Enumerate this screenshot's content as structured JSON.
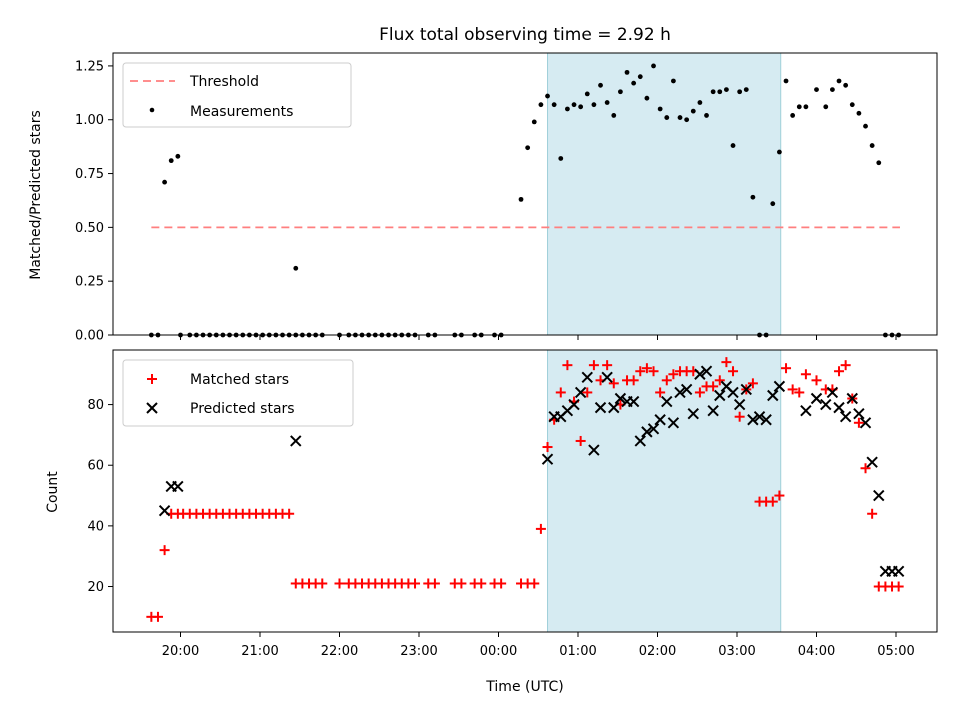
{
  "chart_data": [
    {
      "type": "scatter",
      "title": "Flux total observing time = 2.92 h",
      "ylabel": "Matched/Predicted stars",
      "xlabel": "",
      "ylim": [
        0.0,
        1.31
      ],
      "yticks": [
        0.0,
        0.25,
        0.5,
        0.75,
        1.0,
        1.25
      ],
      "ytick_labels": [
        "0.00",
        "0.25",
        "0.50",
        "0.75",
        "1.00",
        "1.25"
      ],
      "threshold": 0.5,
      "shaded_region": [
        "00:37",
        "03:33"
      ],
      "legend_position": "upper-left",
      "series": [
        {
          "name": "Threshold",
          "style": "dashed-line",
          "color": "#ff7f7f",
          "x": [
            "19:38",
            "05:03"
          ],
          "y": [
            0.5,
            0.5
          ]
        },
        {
          "name": "Measurements",
          "style": "dot",
          "color": "#000000",
          "x": [
            "19:38",
            "19:43",
            "19:48",
            "19:53",
            "19:58",
            "20:00",
            "20:07",
            "20:12",
            "20:17",
            "20:22",
            "20:27",
            "20:32",
            "20:37",
            "20:42",
            "20:47",
            "20:52",
            "20:57",
            "21:02",
            "21:07",
            "21:12",
            "21:17",
            "21:22",
            "21:27",
            "21:27",
            "21:32",
            "21:37",
            "21:42",
            "21:47",
            "22:00",
            "22:07",
            "22:12",
            "22:17",
            "22:22",
            "22:27",
            "22:32",
            "22:37",
            "22:42",
            "22:47",
            "22:52",
            "22:57",
            "23:07",
            "23:12",
            "23:27",
            "23:32",
            "23:42",
            "23:47",
            "23:57",
            "24:02",
            "24:17",
            "24:22",
            "24:27",
            "24:32",
            "24:37",
            "24:42",
            "24:47",
            "24:52",
            "24:57",
            "25:02",
            "25:07",
            "25:12",
            "25:17",
            "25:22",
            "25:27",
            "25:32",
            "25:37",
            "25:42",
            "25:47",
            "25:52",
            "25:57",
            "26:02",
            "26:07",
            "26:12",
            "26:17",
            "26:22",
            "26:27",
            "26:32",
            "26:37",
            "26:42",
            "26:47",
            "26:52",
            "26:57",
            "27:02",
            "27:07",
            "27:12",
            "27:17",
            "27:22",
            "27:27",
            "27:32",
            "27:37",
            "27:42",
            "27:47",
            "27:52",
            "28:00",
            "28:07",
            "28:12",
            "28:17",
            "28:22",
            "28:27",
            "28:32",
            "28:37",
            "28:42",
            "28:47",
            "28:52",
            "28:57",
            "29:02"
          ],
          "y": [
            0,
            0,
            0.71,
            0.81,
            0.83,
            0,
            0,
            0,
            0,
            0,
            0,
            0,
            0,
            0,
            0,
            0,
            0,
            0,
            0,
            0,
            0,
            0,
            0,
            0.31,
            0,
            0,
            0,
            0,
            0,
            0,
            0,
            0,
            0,
            0,
            0,
            0,
            0,
            0,
            0,
            0,
            0,
            0,
            0,
            0,
            0,
            0,
            0,
            0,
            0.63,
            0.87,
            0.99,
            1.07,
            1.11,
            1.07,
            0.82,
            1.05,
            1.07,
            1.06,
            1.12,
            1.07,
            1.16,
            1.08,
            1.02,
            1.13,
            1.22,
            1.17,
            1.2,
            1.1,
            1.25,
            1.05,
            1.01,
            1.18,
            1.01,
            1.0,
            1.04,
            1.08,
            1.02,
            1.13,
            1.13,
            1.14,
            0.88,
            1.13,
            1.14,
            0.64,
            0,
            0,
            0.61,
            0.85,
            1.18,
            1.02,
            1.06,
            1.06,
            1.14,
            1.06,
            1.14,
            1.18,
            1.16,
            1.07,
            1.03,
            0.97,
            0.88,
            0.8,
            0,
            0,
            0
          ]
        }
      ]
    },
    {
      "type": "scatter",
      "title": "",
      "xlabel": "Time (UTC)",
      "ylabel": "Count",
      "ylim": [
        5,
        98
      ],
      "yticks": [
        20,
        40,
        60,
        80
      ],
      "ytick_labels": [
        "20",
        "40",
        "60",
        "80"
      ],
      "xticks": [
        "20:00",
        "21:00",
        "22:00",
        "23:00",
        "00:00",
        "01:00",
        "02:00",
        "03:00",
        "04:00",
        "05:00"
      ],
      "shaded_region": [
        "00:37",
        "03:33"
      ],
      "legend_position": "upper-left",
      "series": [
        {
          "name": "Matched stars",
          "style": "plus",
          "color": "#ff0000",
          "x": [
            "19:38",
            "19:43",
            "19:48",
            "19:53",
            "19:58",
            "20:02",
            "20:07",
            "20:12",
            "20:17",
            "20:22",
            "20:27",
            "20:32",
            "20:37",
            "20:42",
            "20:47",
            "20:52",
            "20:57",
            "21:02",
            "21:07",
            "21:12",
            "21:17",
            "21:22",
            "21:27",
            "21:32",
            "21:37",
            "21:42",
            "21:47",
            "22:00",
            "22:07",
            "22:12",
            "22:17",
            "22:22",
            "22:27",
            "22:32",
            "22:37",
            "22:42",
            "22:47",
            "22:52",
            "22:57",
            "23:07",
            "23:12",
            "23:27",
            "23:32",
            "23:42",
            "23:47",
            "23:57",
            "24:02",
            "24:17",
            "24:22",
            "24:27",
            "24:32",
            "24:37",
            "24:42",
            "24:47",
            "24:52",
            "24:57",
            "25:02",
            "25:07",
            "25:12",
            "25:17",
            "25:22",
            "25:27",
            "25:32",
            "25:37",
            "25:42",
            "25:47",
            "25:52",
            "25:57",
            "26:02",
            "26:07",
            "26:12",
            "26:17",
            "26:22",
            "26:27",
            "26:32",
            "26:37",
            "26:42",
            "26:47",
            "26:52",
            "26:57",
            "27:02",
            "27:07",
            "27:12",
            "27:17",
            "27:22",
            "27:27",
            "27:32",
            "27:37",
            "27:42",
            "27:47",
            "27:52",
            "28:00",
            "28:07",
            "28:12",
            "28:17",
            "28:22",
            "28:27",
            "28:32",
            "28:37",
            "28:42",
            "28:47",
            "28:52",
            "28:57",
            "29:02"
          ],
          "y": [
            10,
            10,
            32,
            44,
            44,
            44,
            44,
            44,
            44,
            44,
            44,
            44,
            44,
            44,
            44,
            44,
            44,
            44,
            44,
            44,
            44,
            44,
            21,
            21,
            21,
            21,
            21,
            21,
            21,
            21,
            21,
            21,
            21,
            21,
            21,
            21,
            21,
            21,
            21,
            21,
            21,
            21,
            21,
            21,
            21,
            21,
            21,
            21,
            21,
            21,
            39,
            66,
            75,
            84,
            93,
            81,
            68,
            84,
            93,
            88,
            93,
            87,
            80,
            88,
            88,
            91,
            92,
            91,
            84,
            88,
            90,
            91,
            91,
            91,
            84,
            86,
            86,
            88,
            94,
            91,
            76,
            85,
            87,
            48,
            48,
            48,
            50,
            92,
            85,
            84,
            90,
            88,
            85,
            85,
            91,
            93,
            82,
            74,
            59,
            44,
            20,
            20,
            20,
            20
          ]
        },
        {
          "name": "Predicted stars",
          "style": "x",
          "color": "#000000",
          "x": [
            "19:48",
            "19:53",
            "19:58",
            "21:27",
            "24:37",
            "24:42",
            "24:47",
            "24:52",
            "24:57",
            "25:02",
            "25:07",
            "25:12",
            "25:17",
            "25:22",
            "25:27",
            "25:32",
            "25:37",
            "25:42",
            "25:47",
            "25:52",
            "25:57",
            "26:02",
            "26:07",
            "26:12",
            "26:17",
            "26:22",
            "26:27",
            "26:32",
            "26:37",
            "26:42",
            "26:47",
            "26:52",
            "26:57",
            "27:02",
            "27:07",
            "27:12",
            "27:17",
            "27:22",
            "27:27",
            "27:32",
            "27:52",
            "28:00",
            "28:07",
            "28:12",
            "28:17",
            "28:22",
            "28:27",
            "28:32",
            "28:37",
            "28:42",
            "28:47",
            "28:52",
            "28:57",
            "29:02"
          ],
          "y": [
            45,
            53,
            53,
            68,
            62,
            76,
            76,
            78,
            80,
            84,
            89,
            65,
            79,
            89,
            79,
            82,
            81,
            81,
            68,
            71,
            72,
            75,
            81,
            74,
            84,
            85,
            77,
            90,
            91,
            78,
            83,
            86,
            84,
            80,
            85,
            75,
            76,
            75,
            83,
            86,
            78,
            82,
            80,
            84,
            79,
            76,
            82,
            77,
            74,
            61,
            50,
            25,
            25,
            25
          ]
        }
      ]
    }
  ]
}
